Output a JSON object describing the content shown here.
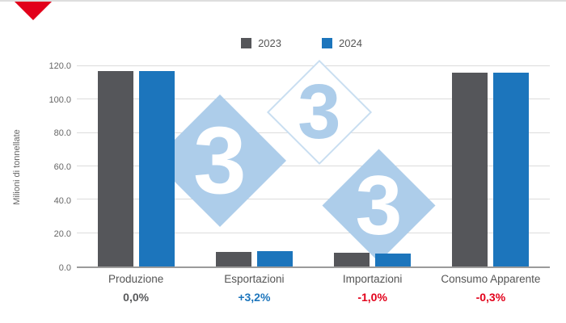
{
  "corner_accent": {
    "color": "#E2001A"
  },
  "watermark": {
    "digit": "3",
    "diamonds": [
      {
        "fill": "#ADCDEA",
        "digit_color": "#FFFFFF",
        "border": ""
      },
      {
        "fill": "#FFFFFF",
        "digit_color": "#ADCDEA",
        "border": "#C9DEF1"
      },
      {
        "fill": "#ADCDEA",
        "digit_color": "#FFFFFF",
        "border": ""
      }
    ]
  },
  "chart_data": {
    "type": "bar",
    "categories": [
      "Produzione",
      "Esportazioni",
      "Importazioni",
      "Consumo Apparente"
    ],
    "series": [
      {
        "name": "2023",
        "color": "#55565A",
        "values": [
          117.0,
          8.8,
          8.0,
          116.2
        ]
      },
      {
        "name": "2024",
        "color": "#1C75BC",
        "values": [
          117.0,
          9.1,
          7.9,
          115.9
        ]
      }
    ],
    "delta_labels": [
      {
        "text": "0,0%",
        "color": "#58595B"
      },
      {
        "text": "+3,2%",
        "color": "#1C75BC"
      },
      {
        "text": "-1,0%",
        "color": "#E2001A"
      },
      {
        "text": "-0,3%",
        "color": "#E2001A"
      }
    ],
    "title": "",
    "xlabel": "",
    "ylabel": "Milioni di tonnellate",
    "ylim": [
      0,
      120
    ],
    "yticks": [
      "0.0",
      "20.0",
      "40.0",
      "60.0",
      "80.0",
      "100.0",
      "120.0"
    ],
    "grid": true,
    "legend_position": "top-center"
  }
}
